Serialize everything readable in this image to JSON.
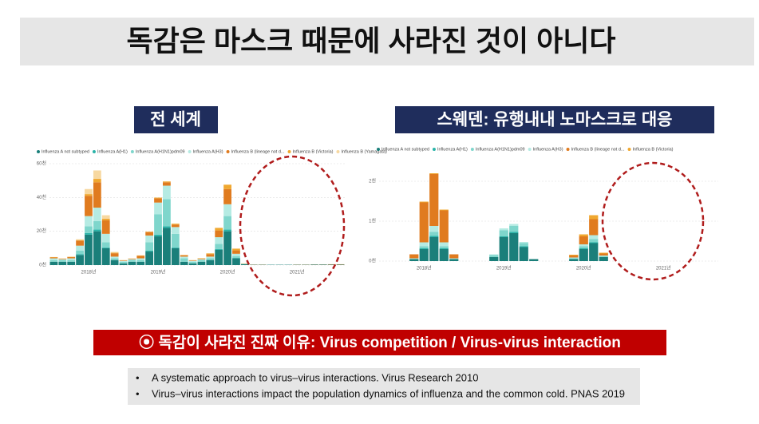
{
  "title": "독감은 마스크 때문에 사라진 것이 아니다",
  "panels": [
    {
      "label": "전 세계"
    },
    {
      "label": "스웨덴: 유행내내 노마스크로 대응"
    }
  ],
  "chart_data": [
    {
      "type": "bar",
      "categories": [
        null,
        null,
        null,
        null,
        "2018년",
        null,
        null,
        null,
        null,
        null,
        null,
        null,
        "2019년",
        null,
        null,
        null,
        null,
        null,
        null,
        null,
        "2020년",
        null,
        null,
        null,
        null,
        null,
        null,
        null,
        "2021년",
        null,
        null,
        null,
        null,
        null
      ],
      "series": [
        {
          "name": "Influenza A not subtyped",
          "color": "#1a7f7a",
          "values": [
            2,
            2,
            2,
            6,
            18,
            20,
            10,
            3,
            1,
            2,
            2,
            8,
            17,
            22,
            10,
            2,
            1,
            2,
            3,
            9,
            20,
            4,
            0.5,
            0.2,
            0.2,
            0.2,
            0.2,
            0.2,
            0.2,
            0.2,
            0.3,
            0.3,
            0.3,
            0.3
          ]
        },
        {
          "name": "Influenza A(H1)",
          "color": "#2bb3a8",
          "values": [
            0,
            0,
            0,
            0.5,
            1,
            1,
            0.5,
            0,
            0,
            0,
            0,
            0.5,
            1,
            1,
            0.5,
            0,
            0,
            0,
            0,
            0.5,
            1,
            0.2,
            0,
            0,
            0,
            0,
            0,
            0,
            0,
            0,
            0,
            0,
            0,
            0
          ]
        },
        {
          "name": "Influenza A(H1N1)pdm09",
          "color": "#7fd6cc",
          "values": [
            1,
            1,
            1,
            2,
            4,
            5,
            3,
            1,
            1,
            1,
            1,
            5,
            12,
            16,
            8,
            2,
            1,
            1,
            1,
            3,
            8,
            1,
            0.2,
            0,
            0,
            0,
            0,
            0,
            0,
            0,
            0,
            0,
            0,
            0
          ]
        },
        {
          "name": "Influenza A(H3)",
          "color": "#b5ebe3",
          "values": [
            1,
            0.5,
            1,
            3,
            6,
            8,
            5,
            1,
            0.5,
            0.5,
            1,
            4,
            7,
            8,
            4,
            1,
            0.5,
            0.5,
            1,
            4,
            7,
            1.5,
            0.1,
            0,
            0,
            0,
            0,
            0,
            0,
            0,
            0,
            0,
            0,
            0
          ]
        },
        {
          "name": "Influenza B (lineage not d...",
          "color": "#e07b1f",
          "values": [
            0.5,
            0.3,
            0.7,
            3,
            12,
            15,
            8,
            2,
            0.3,
            0.3,
            1.5,
            2,
            2.5,
            2,
            1.5,
            0.8,
            0.3,
            0.3,
            1.5,
            4,
            9,
            2,
            0.1,
            0.1,
            0.1,
            0,
            0,
            0,
            0.1,
            0.1,
            0.1,
            0.1,
            0.2,
            0.2
          ]
        },
        {
          "name": "Influenza B (Victoria)",
          "color": "#f0a830",
          "values": [
            0.2,
            0.1,
            0.2,
            0.3,
            1,
            2,
            1,
            0.3,
            0.1,
            0.1,
            0.2,
            0.3,
            0.4,
            0.5,
            0.5,
            0.2,
            0.1,
            0.2,
            0.4,
            1.5,
            2.5,
            1,
            0.1,
            0,
            0,
            0,
            0,
            0,
            0,
            0,
            0,
            0,
            0,
            0
          ]
        },
        {
          "name": "Influenza B (Yamagata)",
          "color": "#f7d8a0",
          "values": [
            0.1,
            0.1,
            0.1,
            0.5,
            3,
            5,
            2,
            0.5,
            0.1,
            0.1,
            0.1,
            0.1,
            0.1,
            0.1,
            0.1,
            0.1,
            0.1,
            0.1,
            0.1,
            0.1,
            0.2,
            0.1,
            0,
            0,
            0,
            0,
            0,
            0,
            0,
            0,
            0,
            0,
            0,
            0
          ]
        }
      ],
      "ylim": [
        0,
        60
      ],
      "yticks": [
        {
          "value": 0,
          "label": "0천"
        },
        {
          "value": 20,
          "label": "20천"
        },
        {
          "value": 40,
          "label": "40천"
        },
        {
          "value": 60,
          "label": "60천"
        }
      ],
      "grid": true,
      "stacked": true
    },
    {
      "type": "bar",
      "categories": [
        null,
        null,
        null,
        null,
        "2018년",
        null,
        null,
        null,
        null,
        null,
        null,
        null,
        "2019년",
        null,
        null,
        null,
        null,
        null,
        null,
        null,
        "2020년",
        null,
        null,
        null,
        null,
        null,
        null,
        null,
        "2021년",
        null,
        null,
        null,
        null,
        null
      ],
      "series": [
        {
          "name": "Influenza A not subtyped",
          "color": "#1a7f7a",
          "values": [
            0,
            0,
            0,
            0.05,
            0.3,
            0.6,
            0.3,
            0.05,
            0,
            0,
            0,
            0.1,
            0.6,
            0.7,
            0.35,
            0.05,
            0,
            0,
            0,
            0.05,
            0.3,
            0.45,
            0.1,
            0,
            0,
            0,
            0,
            0,
            0,
            0,
            0,
            0,
            0,
            0
          ]
        },
        {
          "name": "Influenza A(H1)",
          "color": "#2bb3a8",
          "values": [
            0,
            0,
            0,
            0,
            0.02,
            0.03,
            0.02,
            0,
            0,
            0,
            0,
            0,
            0.02,
            0.03,
            0.02,
            0,
            0,
            0,
            0,
            0,
            0.02,
            0.02,
            0,
            0,
            0,
            0,
            0,
            0,
            0,
            0,
            0,
            0,
            0,
            0
          ]
        },
        {
          "name": "Influenza A(H1N1)pdm09",
          "color": "#7fd6cc",
          "values": [
            0,
            0,
            0,
            0,
            0.05,
            0.1,
            0.05,
            0,
            0,
            0,
            0,
            0.05,
            0.15,
            0.15,
            0.08,
            0,
            0,
            0,
            0,
            0.02,
            0.05,
            0.08,
            0.02,
            0,
            0,
            0,
            0,
            0,
            0,
            0,
            0,
            0,
            0,
            0
          ]
        },
        {
          "name": "Influenza A(H3)",
          "color": "#b5ebe3",
          "values": [
            0,
            0,
            0,
            0.02,
            0.1,
            0.15,
            0.1,
            0.02,
            0,
            0,
            0,
            0.02,
            0.05,
            0.05,
            0.03,
            0,
            0,
            0,
            0,
            0.02,
            0.05,
            0.1,
            0.02,
            0,
            0,
            0,
            0,
            0,
            0,
            0,
            0,
            0,
            0,
            0
          ]
        },
        {
          "name": "Influenza B (lineage not d...",
          "color": "#e07b1f",
          "values": [
            0,
            0,
            0,
            0.1,
            1.0,
            1.3,
            0.8,
            0.1,
            0,
            0,
            0,
            0,
            0,
            0,
            0,
            0,
            0,
            0,
            0,
            0.05,
            0.2,
            0.4,
            0.05,
            0,
            0,
            0,
            0,
            0,
            0,
            0,
            0,
            0,
            0,
            0
          ]
        },
        {
          "name": "Influenza B (Victoria)",
          "color": "#f0a830",
          "values": [
            0,
            0,
            0,
            0,
            0.02,
            0.02,
            0.02,
            0,
            0,
            0,
            0,
            0,
            0,
            0,
            0,
            0,
            0,
            0,
            0,
            0.02,
            0.05,
            0.1,
            0.02,
            0,
            0,
            0,
            0,
            0,
            0,
            0,
            0,
            0,
            0,
            0
          ]
        }
      ],
      "ylim": [
        0,
        2.5
      ],
      "yticks": [
        {
          "value": 0,
          "label": "0천"
        },
        {
          "value": 1,
          "label": "1천"
        },
        {
          "value": 2,
          "label": "2천"
        }
      ],
      "grid": true,
      "stacked": true
    }
  ],
  "banner": "⦿ 독감이 사라진 진짜 이유: Virus competition /  Virus-virus interaction",
  "references": [
    "A systematic approach to virus–virus interactions. Virus Research 2010",
    "Virus–virus interactions impact the population dynamics of influenza and the common cold. PNAS 2019"
  ]
}
